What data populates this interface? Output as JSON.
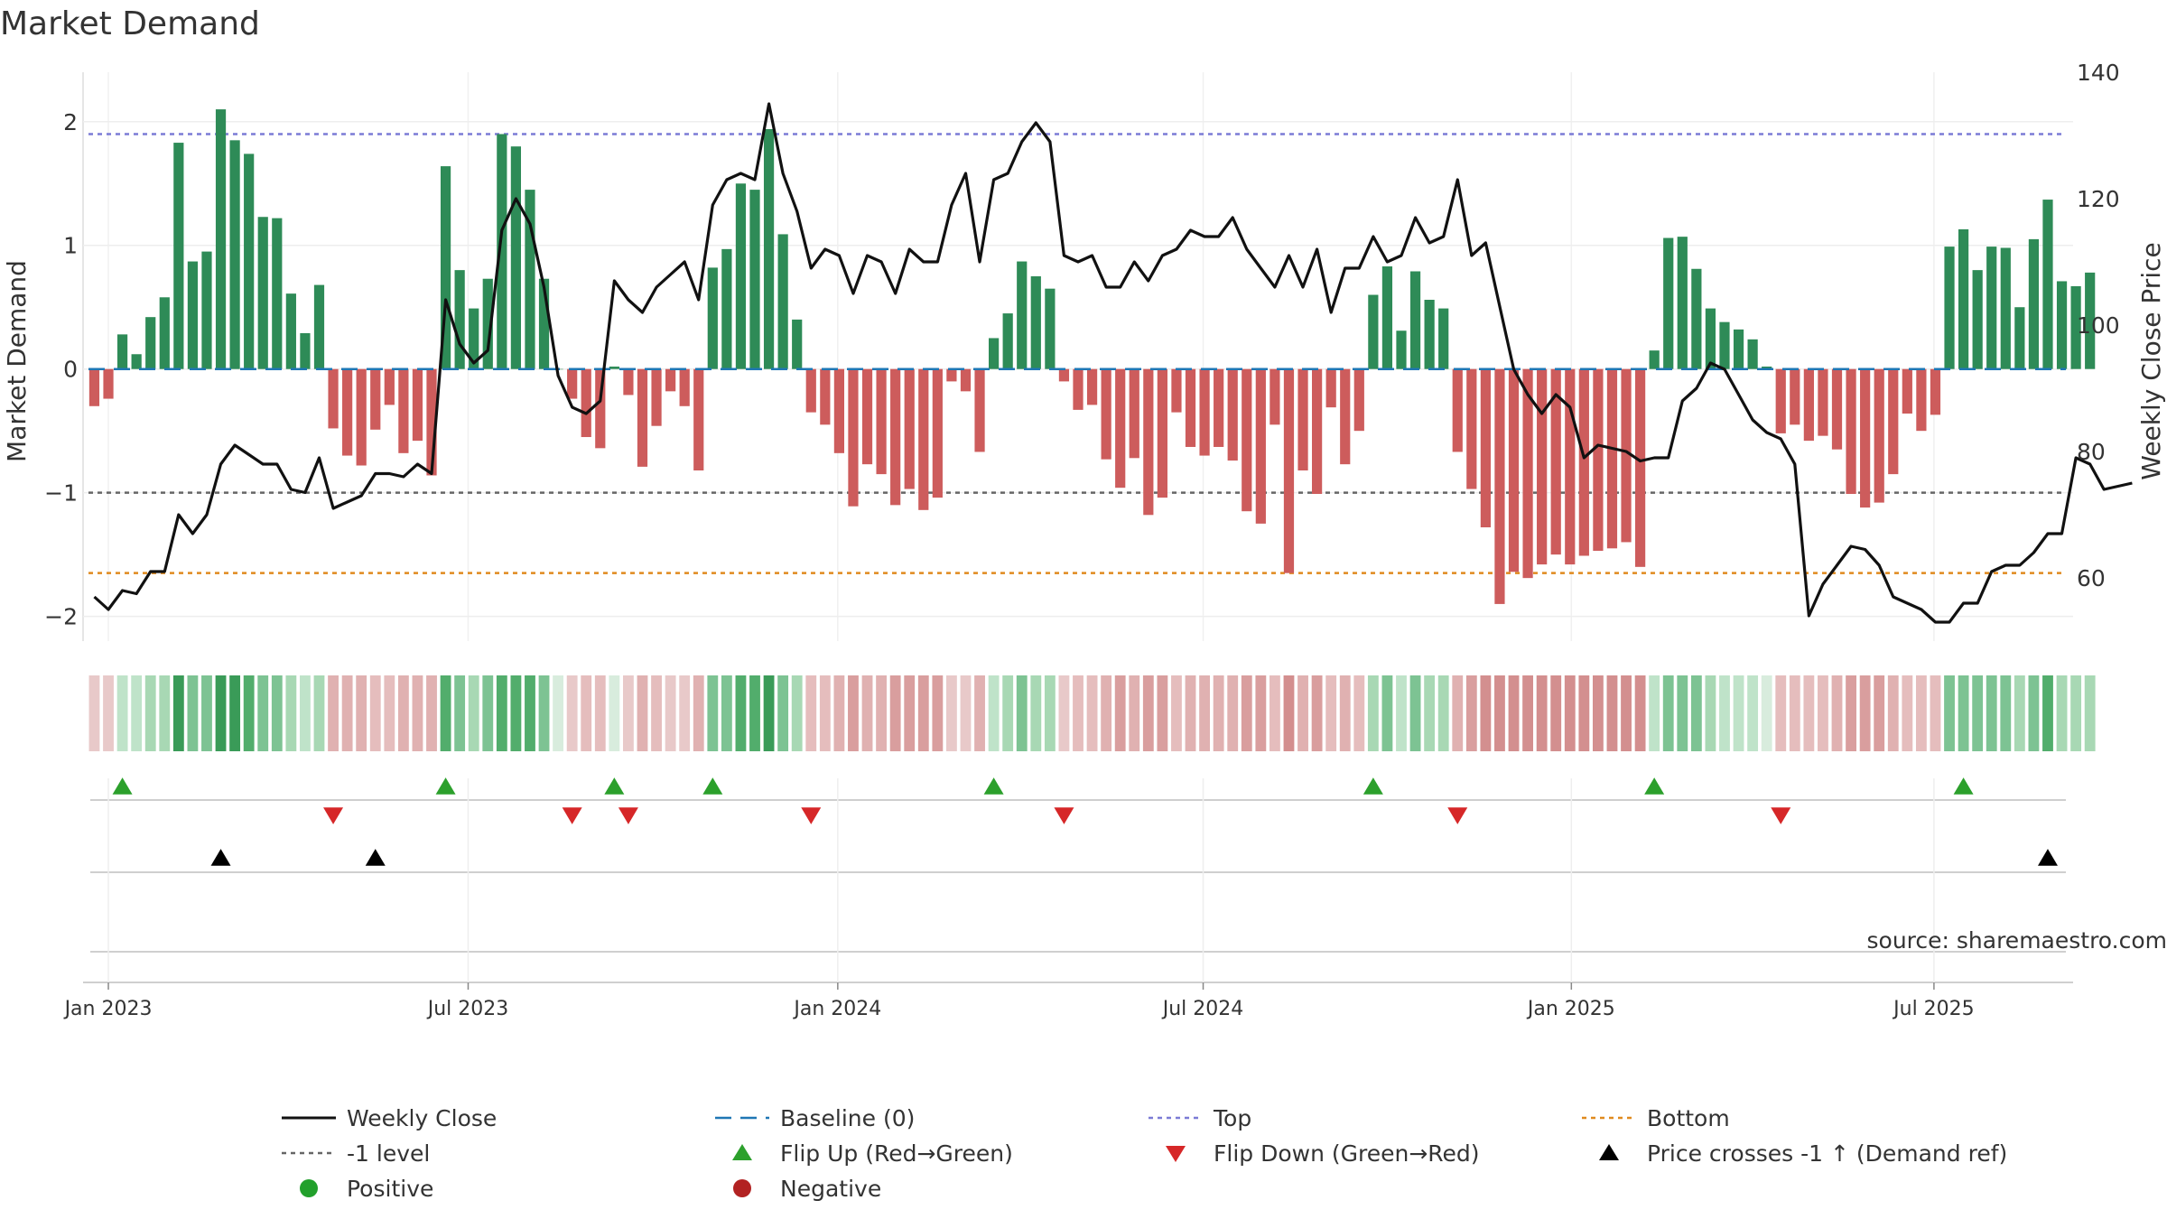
{
  "chart_data": {
    "type": "bar+line",
    "title": "Market Demand",
    "ylabel_left": "Market Demand",
    "ylabel_right": "Weekly Close Price",
    "ylim_left": [
      -2.2,
      2.4
    ],
    "ylim_right": [
      50,
      140
    ],
    "yticks_left": [
      {
        "value": 2,
        "label": "2"
      },
      {
        "value": 1,
        "label": "1"
      },
      {
        "value": 0,
        "label": "0"
      },
      {
        "value": -1,
        "label": "−1"
      },
      {
        "value": -2,
        "label": "−2"
      }
    ],
    "yticks_right": [
      {
        "value": 140,
        "label": "140"
      },
      {
        "value": 120,
        "label": "120"
      },
      {
        "value": 100,
        "label": "100"
      },
      {
        "value": 80,
        "label": "80"
      },
      {
        "value": 60,
        "label": "60"
      }
    ],
    "x_start": "2022-12-26",
    "x_step_weeks": 1,
    "xlim_weeks": [
      -0.8,
      140.8
    ],
    "xticks": [
      {
        "week": 1.0,
        "label": "Jan 2023"
      },
      {
        "week": 26.6,
        "label": "Jul 2023"
      },
      {
        "week": 52.9,
        "label": "Jan 2024"
      },
      {
        "week": 78.9,
        "label": "Jul 2024"
      },
      {
        "week": 105.1,
        "label": "Jan 2025"
      },
      {
        "week": 130.9,
        "label": "Jul 2025"
      }
    ],
    "reference_lines": {
      "baseline": 0,
      "top": 1.9,
      "minus_one": -1,
      "bottom": -1.65
    },
    "demand": [
      -0.3,
      -0.24,
      0.28,
      0.12,
      0.42,
      0.58,
      1.83,
      0.87,
      0.95,
      2.1,
      1.85,
      1.74,
      1.23,
      1.22,
      0.61,
      0.29,
      0.68,
      -0.48,
      -0.7,
      -0.78,
      -0.49,
      -0.29,
      -0.68,
      -0.58,
      -0.86,
      1.64,
      0.8,
      0.49,
      0.73,
      1.9,
      1.8,
      1.45,
      0.73,
      0.0,
      -0.24,
      -0.55,
      -0.64,
      0.02,
      -0.21,
      -0.79,
      -0.46,
      -0.18,
      -0.3,
      -0.82,
      0.82,
      0.97,
      1.5,
      1.45,
      1.94,
      1.09,
      0.4,
      -0.35,
      -0.45,
      -0.68,
      -1.11,
      -0.77,
      -0.85,
      -1.1,
      -0.97,
      -1.14,
      -1.04,
      -0.1,
      -0.18,
      -0.67,
      0.25,
      0.45,
      0.87,
      0.75,
      0.65,
      -0.1,
      -0.33,
      -0.29,
      -0.73,
      -0.96,
      -0.72,
      -1.18,
      -1.04,
      -0.35,
      -0.63,
      -0.7,
      -0.63,
      -0.74,
      -1.15,
      -1.25,
      -0.45,
      -1.65,
      -0.82,
      -1.01,
      -0.31,
      -0.77,
      -0.5,
      0.6,
      0.83,
      0.31,
      0.79,
      0.56,
      0.49,
      -0.67,
      -0.97,
      -1.28,
      -1.9,
      -1.64,
      -1.69,
      -1.58,
      -1.5,
      -1.58,
      -1.51,
      -1.47,
      -1.45,
      -1.4,
      -1.6,
      0.15,
      1.06,
      1.07,
      0.81,
      0.49,
      0.38,
      0.32,
      0.24,
      0.02,
      -0.52,
      -0.45,
      -0.58,
      -0.54,
      -0.65,
      -1.01,
      -1.12,
      -1.08,
      -0.85,
      -0.36,
      -0.5,
      -0.37,
      0.99,
      1.13,
      0.8,
      0.99,
      0.98,
      0.5,
      1.05,
      1.37,
      0.71,
      0.67,
      0.78
    ],
    "weekly_close": [
      57,
      55,
      58,
      57.5,
      61,
      61,
      70,
      67,
      70,
      78,
      81,
      79.5,
      78,
      78,
      74,
      73.5,
      79,
      71,
      72,
      73,
      76.5,
      76.5,
      76,
      78,
      76.5,
      104,
      97,
      94,
      96,
      115,
      120,
      116,
      106,
      92,
      87,
      86,
      88,
      107,
      104,
      102,
      106,
      108,
      110,
      104,
      119,
      123,
      124,
      123,
      135,
      124,
      118,
      109,
      112,
      111,
      105,
      111,
      110,
      105,
      112,
      110,
      110,
      119,
      124,
      110,
      123,
      124,
      129,
      132,
      129,
      111,
      110,
      111,
      106,
      106,
      110,
      107,
      111,
      112,
      115,
      114,
      114,
      117,
      112,
      109,
      106,
      111,
      106,
      112,
      102,
      109,
      109,
      114,
      110,
      111,
      117,
      113,
      114,
      123,
      111,
      113,
      103,
      93,
      89,
      86,
      89,
      87,
      79,
      81,
      80.5,
      80,
      78.5,
      79,
      79,
      88,
      90,
      94,
      93,
      89,
      85,
      83,
      82,
      78,
      54,
      59,
      62,
      65,
      64.5,
      62,
      57,
      56,
      55,
      53,
      53,
      56,
      56,
      61,
      62,
      62,
      64,
      67,
      67,
      79,
      78,
      74,
      74.5,
      75
    ],
    "state_colors": [
      "#e8c9c9",
      "#e8c9c9",
      "#bfe3c9",
      "#bfe3c9",
      "#a8d8b4",
      "#a8d8b4",
      "#3a9b58",
      "#7dc393",
      "#7dc393",
      "#3a9b58",
      "#3a9b58",
      "#52ad6c",
      "#7dc393",
      "#7dc393",
      "#a8d8b4",
      "#bfe3c9",
      "#a8d8b4",
      "#e0b1b1",
      "#e0b1b1",
      "#e0b1b1",
      "#e5bdbd",
      "#e5bdbd",
      "#e0b1b1",
      "#e0b1b1",
      "#e0b1b1",
      "#52ad6c",
      "#7dc393",
      "#a8d8b4",
      "#7dc393",
      "#52ad6c",
      "#52ad6c",
      "#52ad6c",
      "#7dc393",
      "#d8ecdd",
      "#e8c9c9",
      "#e5bdbd",
      "#e5bdbd",
      "#d8ecdd",
      "#e8c9c9",
      "#e0b1b1",
      "#e5bdbd",
      "#e8c9c9",
      "#e8c9c9",
      "#e0b1b1",
      "#7dc393",
      "#7dc393",
      "#52ad6c",
      "#52ad6c",
      "#3a9b58",
      "#7dc393",
      "#a8d8b4",
      "#e5bdbd",
      "#e5bdbd",
      "#e0b1b1",
      "#d99e9e",
      "#e0b1b1",
      "#e0b1b1",
      "#d99e9e",
      "#d99e9e",
      "#d99e9e",
      "#d99e9e",
      "#e8c9c9",
      "#e8c9c9",
      "#e0b1b1",
      "#bfe3c9",
      "#a8d8b4",
      "#7dc393",
      "#a8d8b4",
      "#a8d8b4",
      "#e8c9c9",
      "#e5bdbd",
      "#e5bdbd",
      "#e0b1b1",
      "#d99e9e",
      "#e0b1b1",
      "#d99e9e",
      "#d99e9e",
      "#e5bdbd",
      "#e0b1b1",
      "#e0b1b1",
      "#e0b1b1",
      "#e0b1b1",
      "#d99e9e",
      "#d99e9e",
      "#e5bdbd",
      "#d38f8f",
      "#e0b1b1",
      "#d99e9e",
      "#e5bdbd",
      "#e0b1b1",
      "#e5bdbd",
      "#a8d8b4",
      "#7dc393",
      "#bfe3c9",
      "#7dc393",
      "#a8d8b4",
      "#a8d8b4",
      "#e0b1b1",
      "#d99e9e",
      "#d38f8f",
      "#d38f8f",
      "#d38f8f",
      "#d38f8f",
      "#d38f8f",
      "#d38f8f",
      "#d38f8f",
      "#d38f8f",
      "#d38f8f",
      "#d38f8f",
      "#d38f8f",
      "#d38f8f",
      "#bfe3c9",
      "#7dc393",
      "#7dc393",
      "#7dc393",
      "#a8d8b4",
      "#bfe3c9",
      "#bfe3c9",
      "#bfe3c9",
      "#d8ecdd",
      "#e5bdbd",
      "#e5bdbd",
      "#e5bdbd",
      "#e5bdbd",
      "#e0b1b1",
      "#d99e9e",
      "#d99e9e",
      "#d99e9e",
      "#e0b1b1",
      "#e5bdbd",
      "#e5bdbd",
      "#e5bdbd",
      "#7dc393",
      "#7dc393",
      "#7dc393",
      "#7dc393",
      "#7dc393",
      "#a8d8b4",
      "#7dc393",
      "#52ad6c",
      "#a8d8b4",
      "#a8d8b4",
      "#a8d8b4"
    ],
    "flip_up_weeks": [
      2,
      25,
      37,
      44,
      64,
      91,
      111,
      133
    ],
    "flip_down_weeks": [
      17,
      34,
      38,
      51,
      69,
      97,
      120
    ],
    "price_cross_up_weeks": [
      9,
      20,
      139
    ],
    "source": "source: sharemaestro.com",
    "legend": [
      {
        "key": "weekly_close",
        "label": "Weekly Close"
      },
      {
        "key": "baseline",
        "label": "Baseline (0)"
      },
      {
        "key": "top",
        "label": "Top"
      },
      {
        "key": "bottom",
        "label": "Bottom"
      },
      {
        "key": "minus_one",
        "label": "-1 level"
      },
      {
        "key": "flip_up",
        "label": "Flip Up (Red→Green)"
      },
      {
        "key": "flip_down",
        "label": "Flip Down (Green→Red)"
      },
      {
        "key": "price_cross",
        "label": "Price crosses -1 ↑ (Demand ref)"
      },
      {
        "key": "positive",
        "label": "Positive"
      },
      {
        "key": "negative",
        "label": "Negative"
      }
    ],
    "colors": {
      "positive_bar": "#2e8b57",
      "negative_bar": "#cd5c5c",
      "price_line": "#111111",
      "baseline": "#1f77b4",
      "top": "#7b7bd6",
      "minus_one": "#666666",
      "bottom": "#e08a1e",
      "flip_up": "#2ca02c",
      "flip_down": "#d62728",
      "price_cross": "#000000",
      "positive_marker": "#22a02c",
      "negative_marker": "#b22222"
    }
  }
}
